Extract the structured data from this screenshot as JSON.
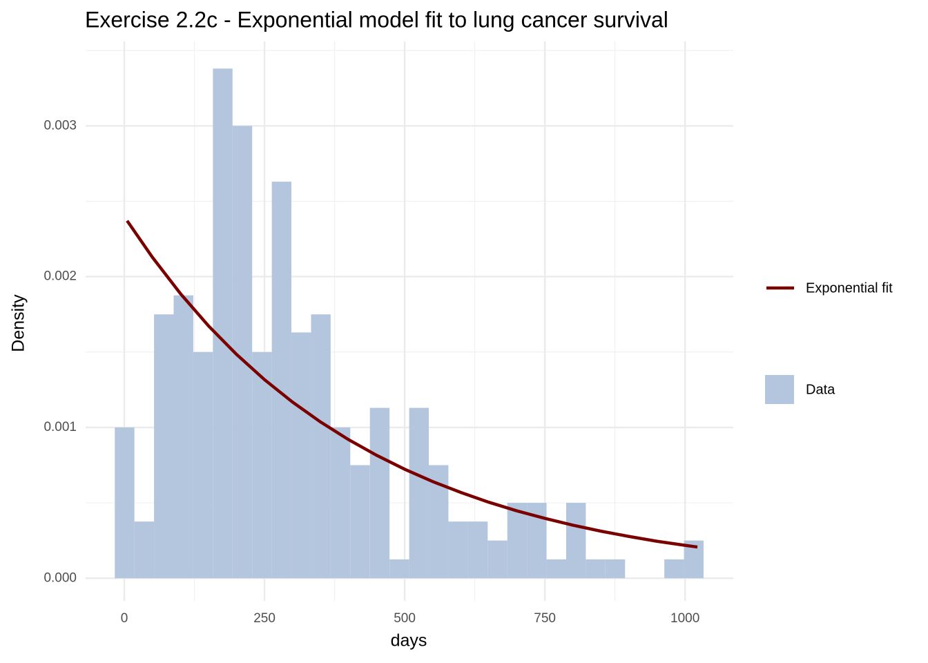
{
  "chart_data": {
    "type": "histogram",
    "title": "Exercise 2.2c - Exponential model fit to lung cancer survival",
    "x_label": "days",
    "y_label": "Density",
    "name": "Data",
    "color": "#b4c6de",
    "bins": [
      -17,
      18,
      53,
      88,
      123,
      158,
      193,
      228,
      263,
      298,
      333,
      368,
      403,
      438,
      473,
      508,
      543,
      578,
      613,
      648,
      683,
      718,
      753,
      788,
      823,
      858,
      893,
      928,
      963,
      998,
      1033
    ],
    "values": [
      0.001,
      0.000376,
      0.00175,
      0.001876,
      0.0015,
      0.00338,
      0.003,
      0.0015,
      0.00263,
      0.00163,
      0.00175,
      0.001,
      0.00075,
      0.00113,
      0.000125,
      0.00113,
      0.00075,
      0.000376,
      0.000376,
      0.00025,
      0.0005,
      0.0005,
      0.000125,
      0.0005,
      0.000125,
      0.000125,
      0,
      0,
      0.000125,
      0.00025
    ],
    "overlay": {
      "type": "line",
      "name": "Exponential fit",
      "color": "#7a0000",
      "x": [
        5,
        50,
        100,
        150,
        200,
        250,
        300,
        350,
        400,
        450,
        500,
        550,
        600,
        650,
        700,
        750,
        800,
        850,
        900,
        950,
        1000,
        1022
      ],
      "values": [
        0.002371,
        0.002129,
        0.001888,
        0.001674,
        0.001485,
        0.001317,
        0.001168,
        0.001036,
        0.000919,
        0.000815,
        0.000723,
        0.000641,
        0.000569,
        0.000504,
        0.000447,
        0.000397,
        0.000352,
        0.000312,
        0.000277,
        0.000245,
        0.000218,
        0.000207
      ]
    },
    "xlim": [
      -69,
      1086
    ],
    "ylim": [
      -0.00015,
      0.00356
    ],
    "xticks": [
      0,
      250,
      500,
      750,
      1000
    ],
    "yticks": [
      {
        "value": 0,
        "label": "0.000"
      },
      {
        "value": 0.001,
        "label": "0.001"
      },
      {
        "value": 0.002,
        "label": "0.002"
      },
      {
        "value": 0.003,
        "label": "0.003"
      }
    ],
    "minor_xticks": [
      125,
      375,
      625,
      875
    ],
    "minor_yticks": [
      0.0005,
      0.0015,
      0.0025,
      0.0035
    ],
    "grid": true
  }
}
